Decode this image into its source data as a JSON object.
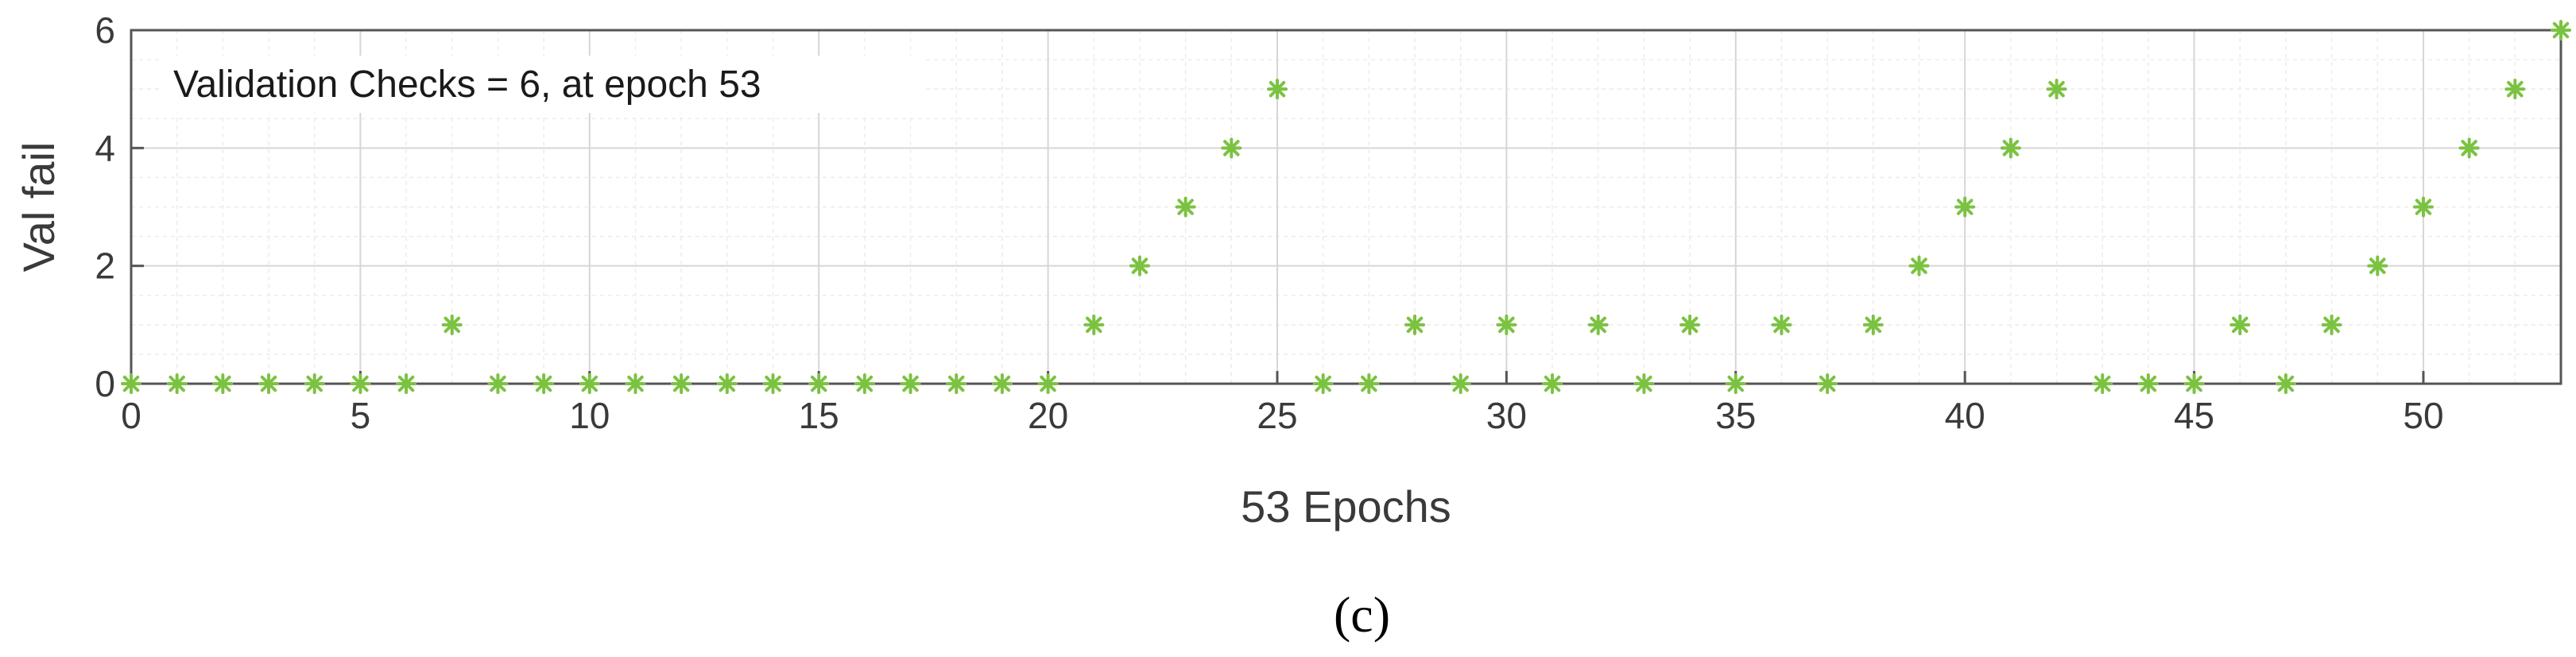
{
  "chart_data": {
    "type": "scatter",
    "title": "",
    "xlabel": "53 Epochs",
    "ylabel": "Val fail",
    "annotation": "Validation Checks = 6, at epoch 53",
    "caption": "(c)",
    "xlim": [
      0,
      53
    ],
    "ylim": [
      0,
      6
    ],
    "x_ticks": [
      0,
      5,
      10,
      15,
      20,
      25,
      30,
      35,
      40,
      45,
      50
    ],
    "y_ticks": [
      0,
      2,
      4,
      6
    ],
    "minor_grid": true,
    "grid": true,
    "marker": "asterisk",
    "marker_color": "#7cc242",
    "series": [
      {
        "x": [
          0,
          1,
          2,
          3,
          4,
          5,
          6,
          7,
          8,
          9,
          10,
          11,
          12,
          13,
          14,
          15,
          16,
          17,
          18,
          19,
          20,
          21,
          22,
          23,
          24,
          25,
          26,
          27,
          28,
          29,
          30,
          31,
          32,
          33,
          34,
          35,
          36,
          37,
          38,
          39,
          40,
          41,
          42,
          43,
          44,
          45,
          46,
          47,
          48,
          49,
          50,
          51,
          52,
          53
        ],
        "values": [
          0,
          0,
          0,
          0,
          0,
          0,
          0,
          1,
          0,
          0,
          0,
          0,
          0,
          0,
          0,
          0,
          0,
          0,
          0,
          0,
          0,
          1,
          2,
          3,
          4,
          5,
          0,
          0,
          1,
          0,
          1,
          0,
          1,
          0,
          1,
          0,
          1,
          0,
          1,
          2,
          3,
          4,
          5,
          0,
          0,
          0,
          1,
          0,
          1,
          2,
          3,
          4,
          5,
          6
        ]
      }
    ]
  }
}
